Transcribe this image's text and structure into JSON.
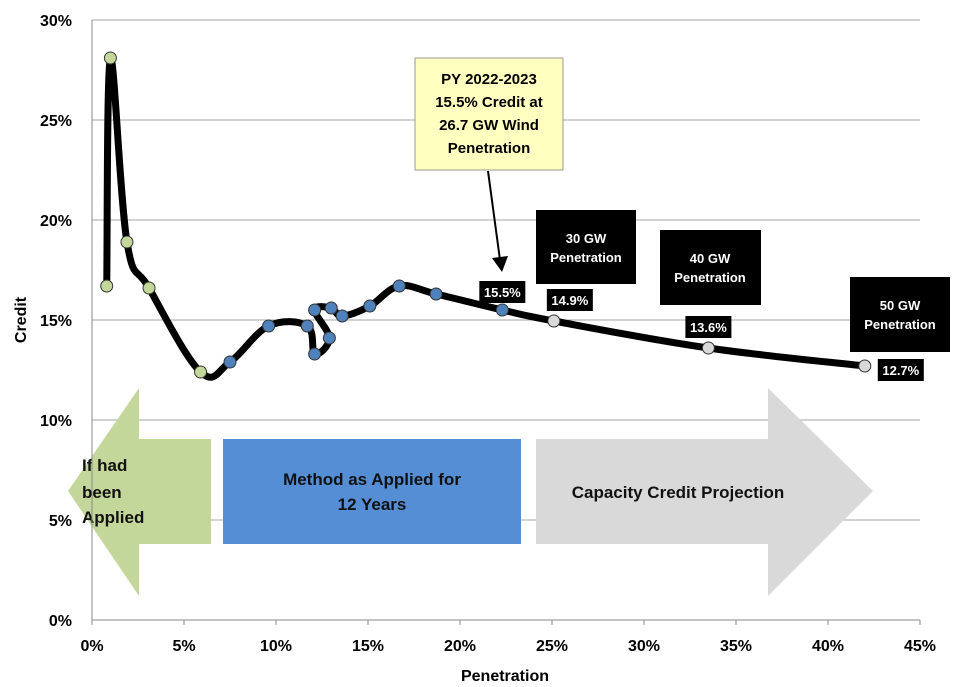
{
  "chart_data": {
    "type": "line",
    "xlabel": "Penetration",
    "ylabel": "Credit",
    "xlim": [
      0,
      45
    ],
    "ylim": [
      0,
      30
    ],
    "x_ticks": [
      "0%",
      "5%",
      "10%",
      "15%",
      "20%",
      "25%",
      "30%",
      "35%",
      "40%",
      "45%"
    ],
    "y_ticks": [
      "0%",
      "5%",
      "10%",
      "15%",
      "20%",
      "25%",
      "30%"
    ],
    "grid": "horizontal",
    "series": [
      {
        "points": [
          {
            "x": 0.8,
            "y": 16.7,
            "group": "if-applied"
          },
          {
            "x": 1.0,
            "y": 28.1,
            "group": "if-applied"
          },
          {
            "x": 1.9,
            "y": 18.9,
            "group": "if-applied"
          },
          {
            "x": 3.1,
            "y": 16.6,
            "group": "if-applied"
          },
          {
            "x": 5.9,
            "y": 12.4,
            "group": "if-applied"
          },
          {
            "x": 7.5,
            "y": 12.9,
            "group": "applied"
          },
          {
            "x": 9.6,
            "y": 14.7,
            "group": "applied"
          },
          {
            "x": 11.7,
            "y": 14.7,
            "group": "applied"
          },
          {
            "x": 12.1,
            "y": 15.5,
            "group": "applied"
          },
          {
            "x": 13.0,
            "y": 15.6,
            "group": "applied"
          },
          {
            "x": 13.6,
            "y": 15.2,
            "group": "applied"
          },
          {
            "x": 15.1,
            "y": 15.7,
            "group": "applied"
          },
          {
            "x": 16.7,
            "y": 16.7,
            "group": "applied"
          },
          {
            "x": 18.7,
            "y": 16.3,
            "group": "applied"
          },
          {
            "x": 22.3,
            "y": 15.5,
            "group": "applied"
          },
          {
            "x": 25.1,
            "y": 14.95,
            "group": "projection"
          },
          {
            "x": 33.5,
            "y": 13.6,
            "group": "projection"
          },
          {
            "x": 42.0,
            "y": 12.7,
            "group": "projection"
          }
        ],
        "extra_points": [
          {
            "x": 12.1,
            "y": 13.3,
            "group": "applied"
          },
          {
            "x": 12.9,
            "y": 14.1,
            "group": "applied"
          }
        ]
      }
    ],
    "data_labels": [
      {
        "x": 22.3,
        "y": 15.5,
        "text": "15.5%"
      },
      {
        "x": 25.1,
        "y": 14.95,
        "text": "14.9%"
      },
      {
        "x": 33.5,
        "y": 13.6,
        "text": "13.6%"
      },
      {
        "x": 42.0,
        "y": 12.7,
        "text": "12.7%"
      }
    ],
    "annotations": [
      {
        "id": "py",
        "lines": [
          "PY 2022-2023",
          "15.5% Credit at",
          "26.7 GW Wind",
          "Penetration"
        ]
      },
      {
        "id": "gw30",
        "lines": [
          "30 GW",
          "Penetration"
        ]
      },
      {
        "id": "gw40",
        "lines": [
          "40 GW",
          "Penetration"
        ]
      },
      {
        "id": "gw50",
        "lines": [
          "50 GW",
          "Penetration"
        ]
      }
    ],
    "bands": [
      {
        "id": "if-applied",
        "lines": [
          "If had",
          "been",
          "Applied"
        ],
        "color": "#c4d79b"
      },
      {
        "id": "applied",
        "lines": [
          "Method as Applied for",
          "12 Years"
        ],
        "color": "#558ed5"
      },
      {
        "id": "projection",
        "lines": [
          "Capacity Credit Projection"
        ],
        "color": "#d9d9d9"
      }
    ],
    "colors": {
      "if-applied": "#c4d79b",
      "applied": "#4f81bd",
      "projection": "#d9d9d9",
      "line": "#000000",
      "callout_fill": "#ffffc0"
    }
  }
}
